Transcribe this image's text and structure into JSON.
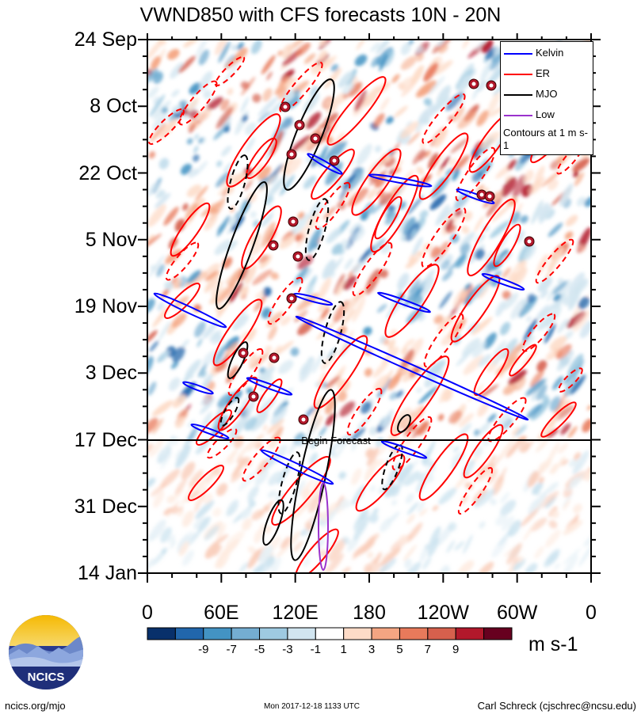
{
  "chart_data": {
    "type": "heatmap",
    "title": "VWND850 with CFS forecasts  10N - 20N",
    "y_ticks": [
      "24 Sep",
      "8 Oct",
      "22 Oct",
      "5 Nov",
      "19 Nov",
      "3 Dec",
      "17 Dec",
      "31 Dec",
      "14 Jan"
    ],
    "x_ticks": [
      "0",
      "60E",
      "120E",
      "180",
      "120W",
      "60W",
      "0"
    ],
    "x_range_deg": [
      0,
      360
    ],
    "colorbar": {
      "labels": [
        "-9",
        "-7",
        "-5",
        "-3",
        "-1",
        "1",
        "3",
        "5",
        "7",
        "9"
      ],
      "colors": [
        "#08306b",
        "#2166ac",
        "#4393c3",
        "#74add1",
        "#9ecae1",
        "#d1e5f0",
        "#ffffff",
        "#fddbc7",
        "#f4a582",
        "#e87a5b",
        "#d6604d",
        "#b2182b",
        "#67001f"
      ],
      "units": "m s-1"
    },
    "legend": {
      "placement": "top-right",
      "entries": [
        {
          "name": "Kelvin",
          "color": "#0000ff"
        },
        {
          "name": "ER",
          "color": "#ff0000"
        },
        {
          "name": "MJO",
          "color": "#000000"
        },
        {
          "name": "Low",
          "color": "#9a32cd"
        }
      ],
      "note": "Contours at 1 m s-1"
    },
    "annotation": "Begin Forecast",
    "forecast_start": "17 Dec"
  },
  "footer": {
    "logo_text": "NCICS",
    "left": "ncics.org/mjo",
    "mid": "Mon 2017-12-18 1133 UTC",
    "right": "Carl Schreck (cjschrec@ncsu.edu)"
  }
}
